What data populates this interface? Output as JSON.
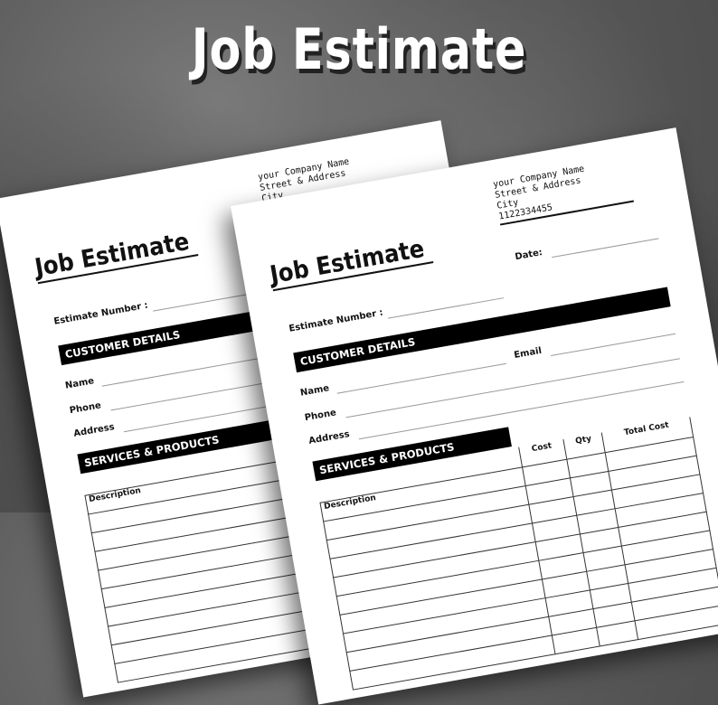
{
  "hero_title": "Job Estimate",
  "form": {
    "company": {
      "name": "your Company Name",
      "street": "Street & Address",
      "city": "City",
      "phone": "1122334455"
    },
    "title": "Job Estimate",
    "date_label": "Date:",
    "estimate_number_label": "Estimate Number :",
    "customer_section": "CUSTOMER DETAILS",
    "name_label": "Name",
    "email_label": "Email",
    "phone_label": "Phone",
    "address_label": "Address",
    "services_section": "SERVICES & PRODUCTS",
    "table": {
      "columns": [
        "Description",
        "Cost",
        "Qty",
        "Total Cost"
      ],
      "empty_rows": 9
    }
  },
  "colors": {
    "background": "#5c5c5c",
    "paper": "#ffffff",
    "ink": "#000000"
  }
}
